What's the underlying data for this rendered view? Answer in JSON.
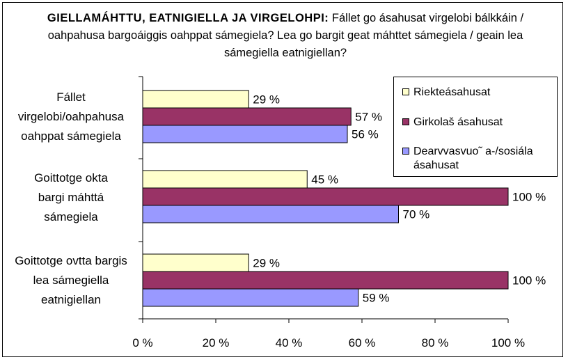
{
  "title": {
    "bold": "GIELLAMÁHTTU, EATNIGIELLA JA VIRGELOHPI:",
    "rest": "Fállet go ásahusat virgelobi bálkkáin / oahpahusa bargoáiggis oahppat sámegiela? Lea go bargit geat máhttet sámegiela / geain lea sámegiella eatnigiellan?"
  },
  "chart_data": {
    "type": "bar",
    "orientation": "horizontal",
    "categories": [
      "Fállet virgelobi/oahpahusa oahppat sámegiela",
      "Goittotge okta bargi máhttá sámegiela",
      "Goittotge ovtta bargis lea sámegiella eatnigiellan"
    ],
    "category_lines": [
      [
        "Fállet",
        "virgelobi/oahpahusa",
        "oahppat sámegiela"
      ],
      [
        "Goittotge okta",
        "bargi máhttá",
        "sámegiela"
      ],
      [
        "Goittotge ovtta bargis",
        "lea sámegiella",
        "eatnigiellan"
      ]
    ],
    "series": [
      {
        "name": "Riekteásahusat",
        "color": "#ffffcc",
        "values": [
          29,
          45,
          29
        ],
        "labels": [
          "29 %",
          "45 %",
          "29 %"
        ]
      },
      {
        "name": "Girkolaš ásahusat",
        "color": "#993366",
        "values": [
          57,
          100,
          100
        ],
        "labels": [
          "57 %",
          "100 %",
          "100 %"
        ]
      },
      {
        "name": "Dearvvasvuo˜ a-/sosiála ásahusat",
        "color": "#9999ff",
        "values": [
          56,
          70,
          59
        ],
        "labels": [
          "56 %",
          "70 %",
          "59 %"
        ]
      }
    ],
    "xlim": [
      0,
      100
    ],
    "xticks": [
      "0 %",
      "20 %",
      "40 %",
      "60 %",
      "80 %",
      "100 %"
    ],
    "legend_position": "top-right",
    "grid": false
  },
  "legend": {
    "items": [
      {
        "lines": [
          "Riekteásahusat"
        ]
      },
      {
        "lines": [
          "Girkolaš ásahusat"
        ]
      },
      {
        "lines": [
          "Dearvvasvuo˜ a-/sosiála",
          "ásahusat"
        ]
      }
    ]
  }
}
